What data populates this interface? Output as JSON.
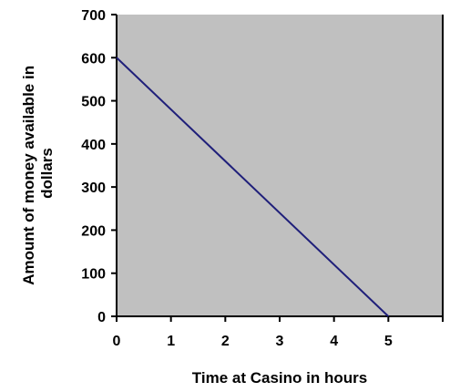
{
  "chart_data": {
    "type": "line",
    "title": "",
    "xlabel": "Time at Casino in hours",
    "ylabel_lines": [
      "Amount of money available in",
      "dollars"
    ],
    "x_ticks": [
      0,
      1,
      2,
      3,
      4,
      5
    ],
    "y_ticks": [
      0,
      100,
      200,
      300,
      400,
      500,
      600,
      700
    ],
    "xlim": [
      0,
      6
    ],
    "ylim": [
      0,
      700
    ],
    "grid": false,
    "legend": "none",
    "series": [
      {
        "x": [
          0,
          5
        ],
        "y": [
          600,
          0
        ]
      }
    ],
    "colors": {
      "plot_background": "#c0c0c0",
      "line": "#1f1f7a",
      "axis": "#000000"
    }
  }
}
